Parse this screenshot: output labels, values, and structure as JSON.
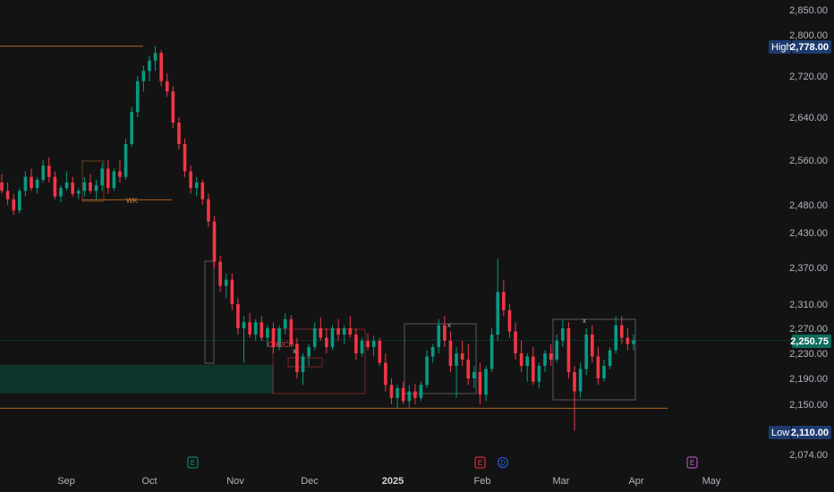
{
  "colors": {
    "background": "#131313",
    "up": "#089981",
    "down": "#f23645",
    "level_line": "#d27a2c",
    "current": "#0f6d5e",
    "high_low_tag": "#1f3b6e",
    "zone": "#0c3a2f",
    "earnings": "#089981",
    "event_red": "#f23645",
    "event_blue": "#2962ff",
    "event_purple": "#c15ccc",
    "axis_text": "#b2b5be"
  },
  "chart_data": {
    "type": "candlestick",
    "y_axis": {
      "position": "right",
      "ticks": [
        "2,850.00",
        "2,800.00",
        "2,720.00",
        "2,640.00",
        "2,560.00",
        "2,480.00",
        "2,430.00",
        "2,370.00",
        "2,310.00",
        "2,270.00",
        "2,230.00",
        "2,190.00",
        "2,150.00",
        "2,074.00"
      ],
      "tick_values": [
        2850,
        2800,
        2720,
        2640,
        2560,
        2480,
        2430,
        2370,
        2310,
        2270,
        2230,
        2190,
        2150,
        2074
      ]
    },
    "x_axis": {
      "labels": [
        "Sep",
        "Oct",
        "Nov",
        "Dec",
        "2025",
        "Feb",
        "Mar",
        "Apr",
        "May"
      ],
      "bold": [
        "2025"
      ]
    },
    "high": {
      "label": "High",
      "value": 2778.0,
      "text": "2,778.00"
    },
    "low": {
      "label": "Low",
      "value": 2110.0,
      "text": "2,110.00"
    },
    "current": {
      "value": 2250.75,
      "text": "2,250.75"
    },
    "levels": [
      2778.0,
      2144.0
    ],
    "zone": {
      "from": 2167,
      "to": 2212
    },
    "annotations": [
      {
        "text": "CHOCH",
        "value": 2252
      },
      {
        "text": "x",
        "value": 2232
      },
      {
        "text": "x",
        "value": 2294
      },
      {
        "text": "x",
        "value": 2300
      },
      {
        "text": "WK",
        "value": 2489
      }
    ],
    "events": [
      {
        "letter": "E",
        "kind": "earnings"
      },
      {
        "letter": "E",
        "kind": "event_red"
      },
      {
        "letter": "D",
        "kind": "event_blue"
      },
      {
        "letter": "E",
        "kind": "event_purple"
      }
    ],
    "candles": [
      [
        2520,
        2535,
        2500,
        2505
      ],
      [
        2505,
        2520,
        2480,
        2490
      ],
      [
        2490,
        2500,
        2462,
        2470
      ],
      [
        2470,
        2510,
        2465,
        2505
      ],
      [
        2505,
        2540,
        2495,
        2530
      ],
      [
        2530,
        2545,
        2505,
        2510
      ],
      [
        2510,
        2530,
        2500,
        2525
      ],
      [
        2525,
        2560,
        2520,
        2550
      ],
      [
        2550,
        2565,
        2520,
        2530
      ],
      [
        2530,
        2540,
        2490,
        2495
      ],
      [
        2495,
        2515,
        2485,
        2510
      ],
      [
        2510,
        2540,
        2505,
        2520
      ],
      [
        2520,
        2530,
        2495,
        2500
      ],
      [
        2500,
        2510,
        2490,
        2505
      ],
      [
        2505,
        2530,
        2495,
        2520
      ],
      [
        2520,
        2535,
        2500,
        2505
      ],
      [
        2505,
        2525,
        2490,
        2515
      ],
      [
        2515,
        2555,
        2505,
        2545
      ],
      [
        2545,
        2560,
        2500,
        2510
      ],
      [
        2510,
        2545,
        2505,
        2540
      ],
      [
        2540,
        2560,
        2520,
        2530
      ],
      [
        2530,
        2600,
        2525,
        2590
      ],
      [
        2590,
        2660,
        2585,
        2650
      ],
      [
        2650,
        2720,
        2640,
        2710
      ],
      [
        2710,
        2740,
        2690,
        2730
      ],
      [
        2730,
        2760,
        2710,
        2750
      ],
      [
        2750,
        2778,
        2730,
        2765
      ],
      [
        2765,
        2770,
        2700,
        2710
      ],
      [
        2710,
        2725,
        2680,
        2690
      ],
      [
        2690,
        2700,
        2620,
        2630
      ],
      [
        2630,
        2640,
        2580,
        2590
      ],
      [
        2590,
        2600,
        2530,
        2540
      ],
      [
        2540,
        2550,
        2500,
        2510
      ],
      [
        2510,
        2530,
        2495,
        2520
      ],
      [
        2520,
        2525,
        2480,
        2490
      ],
      [
        2490,
        2500,
        2440,
        2450
      ],
      [
        2450,
        2460,
        2370,
        2380
      ],
      [
        2380,
        2390,
        2330,
        2340
      ],
      [
        2340,
        2360,
        2320,
        2350
      ],
      [
        2350,
        2360,
        2300,
        2310
      ],
      [
        2310,
        2320,
        2260,
        2270
      ],
      [
        2270,
        2290,
        2215,
        2280
      ],
      [
        2280,
        2295,
        2255,
        2260
      ],
      [
        2260,
        2285,
        2250,
        2280
      ],
      [
        2280,
        2290,
        2250,
        2255
      ],
      [
        2255,
        2275,
        2240,
        2270
      ],
      [
        2270,
        2280,
        2230,
        2240
      ],
      [
        2240,
        2275,
        2235,
        2270
      ],
      [
        2270,
        2295,
        2260,
        2285
      ],
      [
        2285,
        2292,
        2240,
        2245
      ],
      [
        2245,
        2255,
        2190,
        2200
      ],
      [
        2200,
        2230,
        2180,
        2225
      ],
      [
        2225,
        2245,
        2210,
        2240
      ],
      [
        2240,
        2280,
        2235,
        2270
      ],
      [
        2270,
        2288,
        2250,
        2255
      ],
      [
        2255,
        2270,
        2230,
        2240
      ],
      [
        2240,
        2275,
        2235,
        2270
      ],
      [
        2270,
        2285,
        2250,
        2260
      ],
      [
        2260,
        2275,
        2245,
        2270
      ],
      [
        2270,
        2290,
        2255,
        2260
      ],
      [
        2260,
        2270,
        2220,
        2230
      ],
      [
        2230,
        2255,
        2225,
        2250
      ],
      [
        2250,
        2262,
        2235,
        2240
      ],
      [
        2240,
        2258,
        2225,
        2250
      ],
      [
        2250,
        2255,
        2210,
        2215
      ],
      [
        2215,
        2230,
        2170,
        2180
      ],
      [
        2180,
        2190,
        2150,
        2160
      ],
      [
        2160,
        2180,
        2145,
        2175
      ],
      [
        2175,
        2185,
        2150,
        2155
      ],
      [
        2155,
        2180,
        2145,
        2170
      ],
      [
        2170,
        2182,
        2150,
        2160
      ],
      [
        2160,
        2185,
        2155,
        2180
      ],
      [
        2180,
        2235,
        2175,
        2225
      ],
      [
        2225,
        2245,
        2215,
        2240
      ],
      [
        2240,
        2285,
        2230,
        2275
      ],
      [
        2275,
        2290,
        2240,
        2250
      ],
      [
        2250,
        2265,
        2200,
        2210
      ],
      [
        2210,
        2240,
        2160,
        2230
      ],
      [
        2230,
        2250,
        2210,
        2220
      ],
      [
        2220,
        2245,
        2180,
        2190
      ],
      [
        2190,
        2210,
        2175,
        2200
      ],
      [
        2200,
        2215,
        2150,
        2165
      ],
      [
        2165,
        2210,
        2155,
        2205
      ],
      [
        2205,
        2270,
        2200,
        2260
      ],
      [
        2260,
        2385,
        2250,
        2330
      ],
      [
        2330,
        2350,
        2290,
        2300
      ],
      [
        2300,
        2310,
        2255,
        2265
      ],
      [
        2265,
        2280,
        2220,
        2230
      ],
      [
        2230,
        2250,
        2200,
        2210
      ],
      [
        2210,
        2230,
        2185,
        2225
      ],
      [
        2225,
        2240,
        2180,
        2185
      ],
      [
        2185,
        2215,
        2175,
        2210
      ],
      [
        2210,
        2235,
        2200,
        2230
      ],
      [
        2230,
        2245,
        2210,
        2220
      ],
      [
        2220,
        2260,
        2215,
        2250
      ],
      [
        2250,
        2285,
        2240,
        2270
      ],
      [
        2270,
        2280,
        2190,
        2200
      ],
      [
        2200,
        2210,
        2110,
        2170
      ],
      [
        2170,
        2215,
        2160,
        2205
      ],
      [
        2205,
        2270,
        2195,
        2260
      ],
      [
        2260,
        2275,
        2215,
        2225
      ],
      [
        2225,
        2240,
        2180,
        2190
      ],
      [
        2190,
        2220,
        2185,
        2210
      ],
      [
        2210,
        2240,
        2205,
        2235
      ],
      [
        2235,
        2290,
        2230,
        2275
      ],
      [
        2275,
        2290,
        2245,
        2255
      ],
      [
        2255,
        2270,
        2235,
        2245
      ],
      [
        2245,
        2260,
        2235,
        2250.75
      ]
    ]
  }
}
